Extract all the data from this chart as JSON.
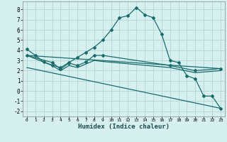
{
  "xlabel": "Humidex (Indice chaleur)",
  "background_color": "#d6f0f0",
  "grid_color": "#b8d8d8",
  "line_color": "#1a6b6b",
  "xlim": [
    -0.5,
    23.5
  ],
  "ylim": [
    -2.5,
    8.8
  ],
  "xticks": [
    0,
    1,
    2,
    3,
    4,
    5,
    6,
    7,
    8,
    9,
    10,
    11,
    12,
    13,
    14,
    15,
    16,
    17,
    18,
    19,
    20,
    21,
    22,
    23
  ],
  "yticks": [
    -2,
    -1,
    0,
    1,
    2,
    3,
    4,
    5,
    6,
    7,
    8
  ],
  "series": [
    {
      "x": [
        0,
        1,
        2,
        3,
        4,
        5,
        6,
        7,
        8,
        9,
        10,
        11,
        12,
        13,
        14,
        15,
        16,
        17,
        18,
        19,
        20,
        21,
        22,
        23
      ],
      "y": [
        4.1,
        3.5,
        2.85,
        2.55,
        2.3,
        2.8,
        3.3,
        3.8,
        4.3,
        5.0,
        6.0,
        7.2,
        7.4,
        8.2,
        7.5,
        7.2,
        5.6,
        3.0,
        2.8,
        1.5,
        1.2,
        -0.5,
        -0.5,
        -1.7
      ],
      "marker": true
    },
    {
      "x": [
        0,
        3,
        4,
        5,
        6,
        7,
        8,
        9,
        17,
        20,
        23
      ],
      "y": [
        3.5,
        2.8,
        2.15,
        2.75,
        2.5,
        2.85,
        3.5,
        3.5,
        2.5,
        2.0,
        2.2
      ],
      "marker": true
    },
    {
      "x": [
        0,
        3,
        4,
        5,
        6,
        7,
        8,
        9,
        17,
        20,
        23
      ],
      "y": [
        3.5,
        2.5,
        2.0,
        2.5,
        2.3,
        2.65,
        3.0,
        2.9,
        2.3,
        1.8,
        2.0
      ],
      "marker": false
    },
    {
      "x": [
        0,
        23
      ],
      "y": [
        2.3,
        -1.7
      ],
      "marker": false
    },
    {
      "x": [
        0,
        23
      ],
      "y": [
        3.5,
        2.2
      ],
      "marker": false
    }
  ]
}
